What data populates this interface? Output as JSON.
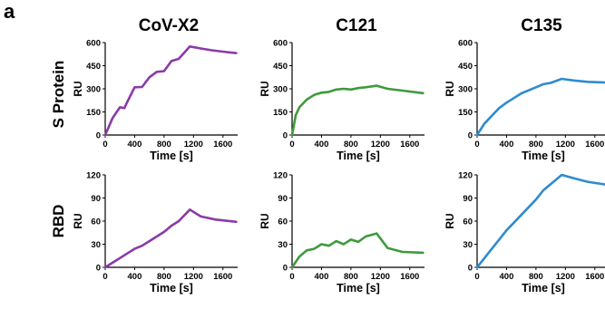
{
  "panel_letter": "a",
  "columns": [
    "CoV-X2",
    "C121",
    "C135"
  ],
  "rows": [
    "S Protein",
    "RBD"
  ],
  "colors": {
    "CoV-X2": "#8a3aa8",
    "C121": "#3f9a3c",
    "C135": "#2e8bd0"
  },
  "chart_data": [
    {
      "type": "line",
      "row": "S Protein",
      "column": "CoV-X2",
      "xlabel": "Time [s]",
      "ylabel": "RU",
      "xlim": [
        0,
        1800
      ],
      "ylim": [
        0,
        600
      ],
      "xticks": [
        0,
        400,
        800,
        1200,
        1600
      ],
      "yticks": [
        0,
        150,
        300,
        450,
        600
      ],
      "x": [
        0,
        100,
        200,
        260,
        300,
        400,
        500,
        600,
        700,
        800,
        900,
        1000,
        1150,
        1300,
        1450,
        1600,
        1780
      ],
      "y": [
        0,
        110,
        180,
        175,
        215,
        310,
        312,
        375,
        410,
        415,
        480,
        495,
        575,
        562,
        550,
        541,
        532
      ]
    },
    {
      "type": "line",
      "row": "S Protein",
      "column": "C121",
      "xlabel": "Time [s]",
      "ylabel": "RU",
      "xlim": [
        0,
        1800
      ],
      "ylim": [
        0,
        600
      ],
      "xticks": [
        0,
        400,
        800,
        1200,
        1600
      ],
      "yticks": [
        0,
        150,
        300,
        450,
        600
      ],
      "x": [
        0,
        50,
        100,
        200,
        300,
        400,
        500,
        600,
        700,
        800,
        900,
        1000,
        1150,
        1300,
        1500,
        1780
      ],
      "y": [
        0,
        130,
        180,
        230,
        260,
        275,
        280,
        295,
        300,
        295,
        305,
        310,
        320,
        300,
        288,
        272
      ]
    },
    {
      "type": "line",
      "row": "S Protein",
      "column": "C135",
      "xlabel": "Time [s]",
      "ylabel": "RU",
      "xlim": [
        0,
        1800
      ],
      "ylim": [
        0,
        600
      ],
      "xticks": [
        0,
        400,
        800,
        1200,
        1600
      ],
      "yticks": [
        0,
        150,
        300,
        450,
        600
      ],
      "x": [
        0,
        100,
        200,
        300,
        400,
        500,
        600,
        700,
        800,
        900,
        1000,
        1150,
        1300,
        1500,
        1780
      ],
      "y": [
        0,
        75,
        125,
        175,
        210,
        240,
        270,
        290,
        310,
        330,
        338,
        365,
        355,
        345,
        340
      ]
    },
    {
      "type": "line",
      "row": "RBD",
      "column": "CoV-X2",
      "xlabel": "Time [s]",
      "ylabel": "RU",
      "xlim": [
        0,
        1800
      ],
      "ylim": [
        0,
        120
      ],
      "xticks": [
        0,
        400,
        800,
        1200,
        1600
      ],
      "yticks": [
        0,
        30,
        60,
        90,
        120
      ],
      "x": [
        0,
        100,
        200,
        300,
        400,
        500,
        600,
        700,
        800,
        900,
        1000,
        1150,
        1300,
        1500,
        1780
      ],
      "y": [
        0,
        6,
        12,
        18,
        24,
        28,
        34,
        40,
        46,
        54,
        60,
        75,
        66,
        62,
        59
      ]
    },
    {
      "type": "line",
      "row": "RBD",
      "column": "C121",
      "xlabel": "Time [s]",
      "ylabel": "RU",
      "xlim": [
        0,
        1800
      ],
      "ylim": [
        0,
        120
      ],
      "xticks": [
        0,
        400,
        800,
        1200,
        1600
      ],
      "yticks": [
        0,
        30,
        60,
        90,
        120
      ],
      "x": [
        0,
        100,
        200,
        300,
        400,
        500,
        600,
        700,
        800,
        900,
        1000,
        1150,
        1300,
        1500,
        1780
      ],
      "y": [
        0,
        14,
        22,
        24,
        30,
        28,
        34,
        30,
        36,
        33,
        40,
        44,
        25,
        20,
        19
      ]
    },
    {
      "type": "line",
      "row": "RBD",
      "column": "C135",
      "xlabel": "Time [s]",
      "ylabel": "RU",
      "xlim": [
        0,
        1800
      ],
      "ylim": [
        0,
        120
      ],
      "xticks": [
        0,
        400,
        800,
        1200,
        1600
      ],
      "yticks": [
        0,
        30,
        60,
        90,
        120
      ],
      "x": [
        0,
        100,
        200,
        300,
        400,
        500,
        600,
        700,
        800,
        900,
        1000,
        1150,
        1300,
        1500,
        1780
      ],
      "y": [
        0,
        12,
        24,
        36,
        48,
        58,
        68,
        78,
        88,
        100,
        108,
        120,
        116,
        111,
        107
      ]
    }
  ]
}
